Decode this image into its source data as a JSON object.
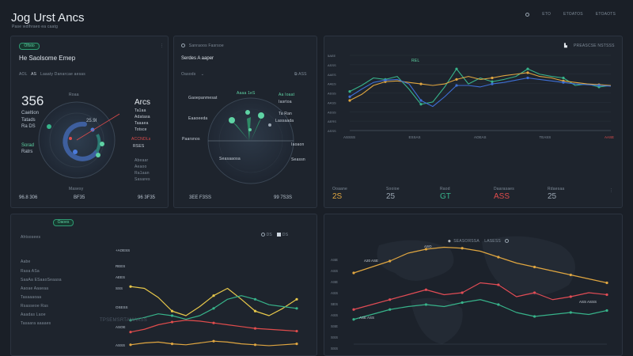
{
  "app": {
    "title": "Jog Urst Ancs",
    "subtitle": "Pase wdlhraeo ea caatg",
    "header_links": [
      "ETO",
      "ETOATOS",
      "ETOAOTS"
    ]
  },
  "panel1": {
    "pill": "Oftsto",
    "title": "He Saolsome Emep",
    "filter_prefix": "AOL",
    "filter_value": "AS",
    "filter_text": "Laaaty Danarcae aesas",
    "big_number": "356",
    "side_labels": [
      "Caeltion",
      "Tatads",
      "Ra DS"
    ],
    "legend_label": "Sorad",
    "legend_sub": "Ratrs",
    "ring_top_label": "Roaa",
    "ring_center": "25.9I",
    "ring_bottom": "Masesy",
    "right_title": "Arcs",
    "right_items": [
      "Ta1aa",
      "Adatasa",
      "Taaaea",
      "Totsce"
    ],
    "right_red": "ACCNDLs",
    "right_red2": "RSES",
    "right_items2": [
      "Abeaar",
      "Aeaoo",
      "Ra1aan",
      "Sasares"
    ],
    "footer": [
      "96.8 306",
      "BF35",
      "96 3F35"
    ]
  },
  "panel2": {
    "header": "Sanraoos Fasrsoe",
    "title": "Serdes A aaper",
    "select": "Oasods",
    "select_right": "ASS",
    "mid_labels": [
      "Gaoepanmesat",
      "Eaaoeeda",
      "Paarsnos"
    ],
    "top_label": "Aaaa 1eS",
    "right_labels": [
      "Aa Ioaat",
      "Iasrtoa",
      "Ta Ran",
      "Lassaada"
    ],
    "right_labels2": [
      "Iaoaon",
      "Seassn"
    ],
    "bottom_label": "Seasaaosa",
    "footer": [
      "3EE F3SS",
      "99 7S3S"
    ]
  },
  "top_chart": {
    "title": "PREASCSE NSTSSS",
    "legend_label": "REL",
    "y_ticks": [
      "5AEE",
      "ASSS",
      "AAES",
      "AAES",
      "ASSS",
      "AASS",
      "ASSS",
      "AERS",
      "ASSS"
    ],
    "x_ticks": [
      "ASSSS",
      "ESSAS",
      "AOEAS",
      "TEASS",
      "AASE"
    ],
    "stats": [
      {
        "label": "Ooaane",
        "value": "2S",
        "color": "#e0a640"
      },
      {
        "label": "Sooioe",
        "value": "25",
        "color": "#9aa6b2"
      },
      {
        "label": "Raod",
        "value": "GT",
        "color": "#37b38a"
      },
      {
        "label": "Daarasaes",
        "value": "ASS",
        "color": "#e04c4c"
      },
      {
        "label": "Rdaesaa",
        "value": "25",
        "color": "#9aa6b2"
      }
    ]
  },
  "bottom_left": {
    "pill": "Oaoes",
    "title": "Ahtsosees",
    "controls": [
      "DS",
      "DS"
    ],
    "list": [
      "Aabe",
      "Rasa ASa",
      "SaaAa ESaaoSeaasa",
      "Aaoae Aaaeaa",
      "Tasaaaoaa",
      "Rsasseoe Ras",
      "Aaadas Laoe",
      "Tasaara aaaaes"
    ],
    "y_ticks": [
      "+AOESS",
      "REES",
      "AEES",
      "SSS",
      "OSESS",
      "ASOE",
      "ASSS"
    ],
    "mid_label": "TPSEMSRTAMAASS"
  },
  "bottom_right": {
    "legend": [
      "SEASORSSA",
      "LASESS"
    ],
    "y_ticks": [
      "ASE",
      "ASS",
      "ASE",
      "ASS",
      "SES",
      "ASS",
      "SSE",
      "SSS",
      "SSS"
    ],
    "annotations": [
      "A20 ASE",
      "ASO",
      "ASE ASS",
      "ASS ASSS"
    ]
  },
  "chart_data": [
    {
      "type": "line",
      "x": [
        0,
        1,
        2,
        3,
        4,
        5,
        6,
        7,
        8,
        9,
        10,
        11,
        12,
        13,
        14,
        15,
        16,
        17,
        18,
        19,
        20,
        21,
        22
      ],
      "series": [
        {
          "name": "",
          "color": "#37b38a",
          "values": [
            52,
            60,
            70,
            68,
            72,
            55,
            35,
            38,
            58,
            82,
            62,
            70,
            65,
            68,
            72,
            82,
            75,
            72,
            70,
            60,
            62,
            58,
            60
          ]
        },
        {
          "name": "",
          "color": "#e0a640",
          "values": [
            40,
            48,
            60,
            65,
            66,
            64,
            62,
            60,
            62,
            68,
            72,
            68,
            70,
            73,
            75,
            77,
            72,
            70,
            66,
            64,
            62,
            61,
            60
          ]
        },
        {
          "name": "",
          "color": "#3e6fd6",
          "values": [
            45,
            55,
            64,
            67,
            68,
            62,
            40,
            32,
            45,
            60,
            60,
            58,
            62,
            64,
            67,
            70,
            68,
            66,
            64,
            62,
            61,
            60,
            59
          ]
        }
      ]
    },
    {
      "type": "line",
      "x": [
        0,
        1,
        2,
        3,
        4,
        5,
        6,
        7,
        8,
        9,
        10,
        11,
        12
      ],
      "series": [
        {
          "name": "",
          "color": "#e8c84a",
          "values": [
            72,
            70,
            60,
            45,
            40,
            50,
            62,
            70,
            58,
            45,
            40,
            48,
            58
          ]
        },
        {
          "name": "",
          "color": "#37b38a",
          "values": [
            35,
            38,
            42,
            40,
            36,
            40,
            48,
            58,
            62,
            58,
            52,
            50,
            48
          ]
        },
        {
          "name": "",
          "color": "#e04c4c",
          "values": [
            22,
            25,
            30,
            33,
            35,
            34,
            32,
            30,
            28,
            26,
            25,
            24,
            23
          ]
        },
        {
          "name": "",
          "color": "#e0a640",
          "values": [
            8,
            10,
            11,
            9,
            8,
            10,
            12,
            11,
            9,
            8,
            7,
            8,
            9
          ]
        }
      ]
    },
    {
      "type": "line",
      "x": [
        0,
        1,
        2,
        3,
        4,
        5,
        6,
        7,
        8,
        9,
        10,
        11,
        12,
        13,
        14
      ],
      "series": [
        {
          "name": "",
          "color": "#e0a640",
          "values": [
            72,
            78,
            84,
            92,
            96,
            98,
            97,
            94,
            88,
            82,
            78,
            74,
            70,
            66,
            62
          ]
        },
        {
          "name": "",
          "color": "#e04c55",
          "values": [
            35,
            40,
            45,
            50,
            55,
            50,
            52,
            62,
            60,
            48,
            52,
            45,
            48,
            52,
            50
          ]
        },
        {
          "name": "",
          "color": "#37b38a",
          "values": [
            25,
            30,
            35,
            38,
            40,
            38,
            42,
            45,
            40,
            32,
            28,
            30,
            32,
            30,
            34
          ]
        }
      ]
    }
  ]
}
